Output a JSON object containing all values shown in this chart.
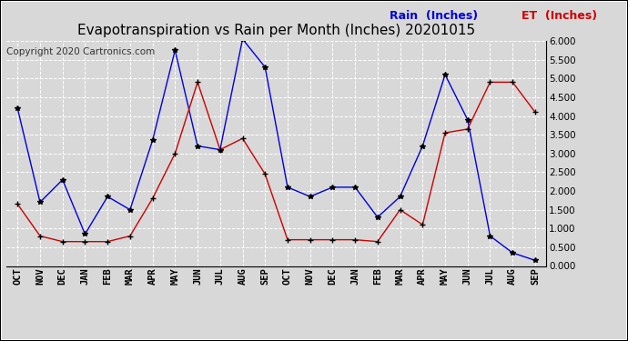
{
  "title": "Evapotranspiration vs Rain per Month (Inches) 20201015",
  "copyright": "Copyright 2020 Cartronics.com",
  "legend_rain": "Rain  (Inches)",
  "legend_et": "ET  (Inches)",
  "x_labels": [
    "OCT",
    "NOV",
    "DEC",
    "JAN",
    "FEB",
    "MAR",
    "APR",
    "MAY",
    "JUN",
    "JUL",
    "AUG",
    "SEP",
    "OCT",
    "NOV",
    "DEC",
    "JAN",
    "FEB",
    "MAR",
    "APR",
    "MAY",
    "JUN",
    "JUL",
    "AUG",
    "SEP"
  ],
  "rain": [
    4.2,
    1.7,
    2.3,
    0.85,
    1.85,
    1.5,
    3.35,
    5.75,
    3.2,
    3.1,
    6.05,
    5.3,
    2.1,
    1.85,
    2.1,
    2.1,
    1.3,
    1.85,
    3.2,
    5.1,
    3.9,
    0.8,
    0.35,
    0.15
  ],
  "et": [
    1.65,
    0.8,
    0.65,
    0.65,
    0.65,
    0.8,
    1.8,
    3.0,
    4.9,
    3.1,
    3.4,
    2.45,
    0.7,
    0.7,
    0.7,
    0.7,
    0.65,
    1.5,
    1.1,
    3.55,
    3.65,
    4.9,
    4.9,
    4.1
  ],
  "ylim": [
    0.0,
    6.0
  ],
  "yticks": [
    0.0,
    0.5,
    1.0,
    1.5,
    2.0,
    2.5,
    3.0,
    3.5,
    4.0,
    4.5,
    5.0,
    5.5,
    6.0
  ],
  "rain_color": "#0000dd",
  "et_color": "#cc0000",
  "marker_color": "#000000",
  "background_color": "#d8d8d8",
  "plot_bg_color": "#d8d8d8",
  "grid_color": "#ffffff",
  "title_fontsize": 11,
  "legend_fontsize": 9,
  "tick_fontsize": 7.5,
  "copyright_fontsize": 7.5,
  "border_color": "#000000"
}
